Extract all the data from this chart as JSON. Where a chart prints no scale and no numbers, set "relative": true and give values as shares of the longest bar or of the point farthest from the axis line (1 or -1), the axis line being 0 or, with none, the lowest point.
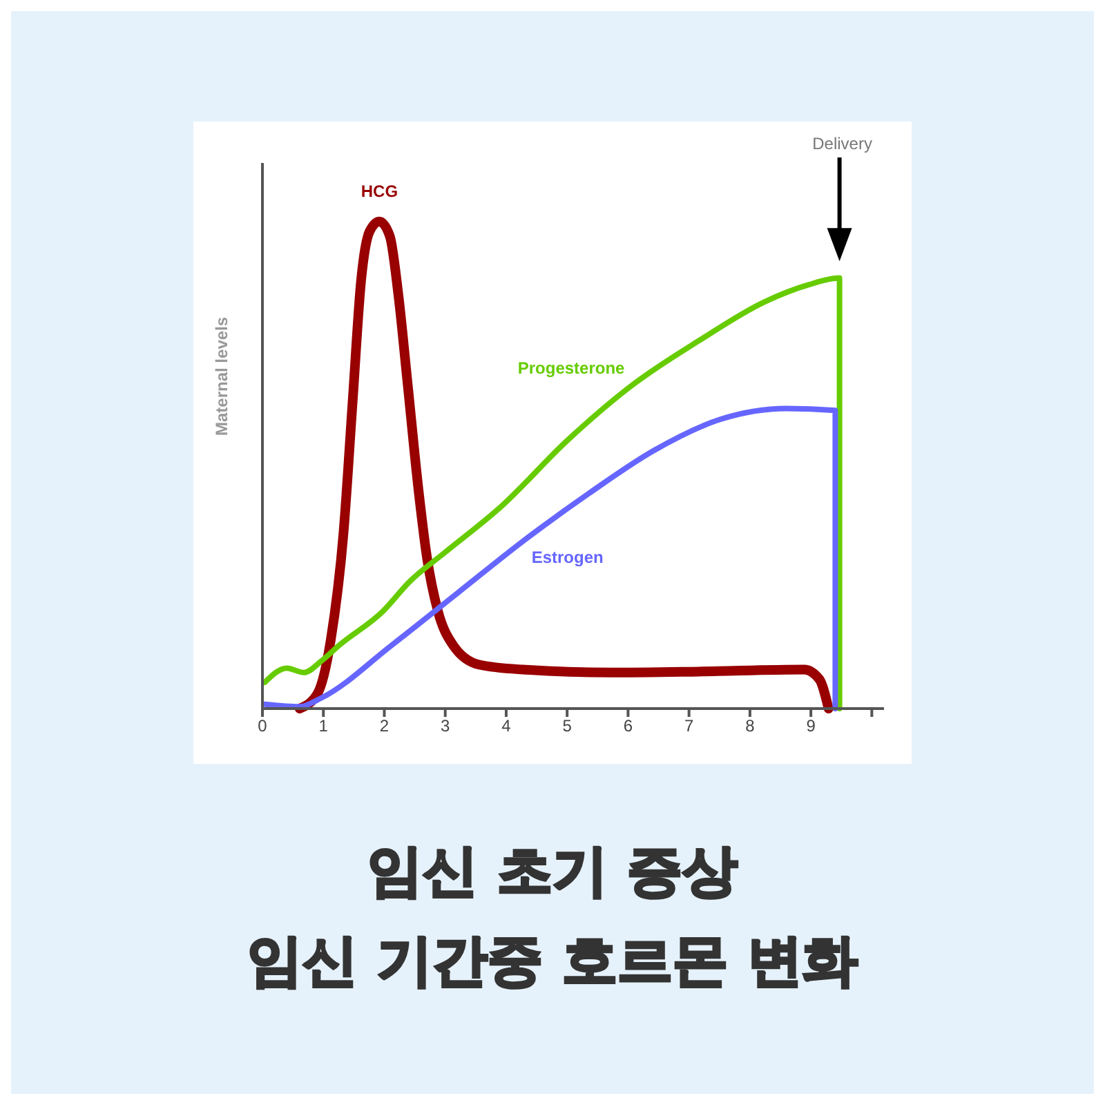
{
  "chart_data": {
    "type": "line",
    "title": "임신 초기 증상",
    "subtitle": "임신 기간중 호르몬 변화",
    "ylabel": "Maternal levels",
    "relative": true,
    "xlim": [
      0,
      10.2
    ],
    "xticks": [
      0,
      1,
      2,
      3,
      4,
      5,
      6,
      7,
      8,
      9,
      {
        "value": 10,
        "label": null
      }
    ],
    "grid": false,
    "legend": false,
    "marker": "none",
    "line_style": "solid",
    "ref_lines": [
      {
        "axis": "x",
        "value": 9.47,
        "label": "Delivery"
      }
    ],
    "series": [
      {
        "name": "HCG",
        "color": "#990000",
        "x": [
          0.61,
          0.9,
          1.12,
          1.33,
          1.48,
          1.62,
          1.76,
          1.92,
          2.09,
          2.23,
          2.38,
          2.56,
          2.7,
          2.88,
          3.13,
          3.56,
          4.28,
          5.72,
          7.16,
          8.89,
          9.14,
          9.29
        ],
        "values": [
          0,
          0.03,
          0.14,
          0.36,
          0.63,
          0.88,
          0.98,
          1,
          0.97,
          0.85,
          0.67,
          0.45,
          0.31,
          0.2,
          0.13,
          0.09,
          0.08,
          0.074,
          0.076,
          0.08,
          0.06,
          0
        ]
      },
      {
        "name": "Progesterone",
        "color": "#66cc00",
        "x": [
          0.04,
          0.4,
          0.68,
          0.97,
          1.26,
          1.98,
          2.41,
          2.99,
          3.92,
          5.0,
          6.08,
          7.16,
          8.24,
          8.96,
          9.47,
          9.47
        ],
        "values": [
          0.054,
          0.083,
          0.074,
          0.098,
          0.13,
          0.2,
          0.26,
          0.32,
          0.415,
          0.55,
          0.665,
          0.755,
          0.835,
          0.87,
          0.884,
          0
        ]
      },
      {
        "name": "Estrogen",
        "color": "#6666ff",
        "x": [
          0.04,
          0.61,
          0.97,
          2.12,
          3.2,
          4.28,
          5.36,
          6.44,
          7.52,
          8.6,
          9.4,
          9.4
        ],
        "values": [
          0.009,
          0.004,
          0.022,
          0.13,
          0.237,
          0.344,
          0.442,
          0.531,
          0.594,
          0.616,
          0.612,
          0
        ]
      }
    ]
  }
}
